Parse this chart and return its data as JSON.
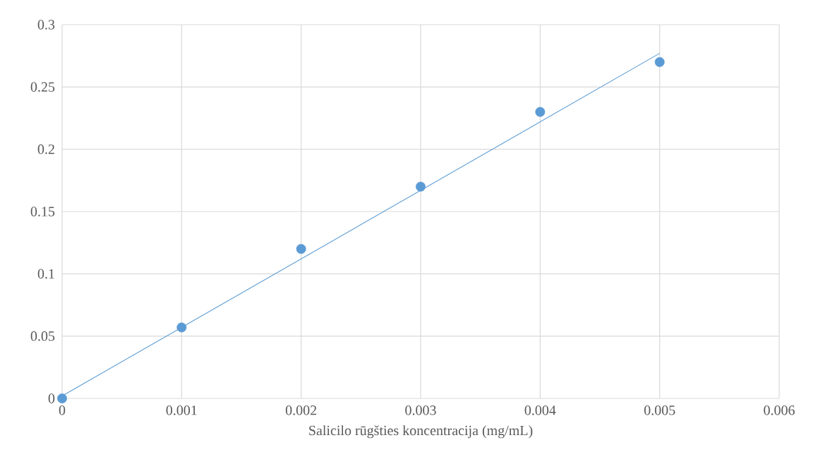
{
  "chart_data": {
    "type": "scatter",
    "xlabel": "Salicilo rūgšties koncentracija (mg/mL)",
    "series": [
      {
        "color": "#5b9bd5",
        "x": [
          0,
          0.001,
          0.002,
          0.003,
          0.004,
          0.005
        ],
        "values": [
          0,
          0.057,
          0.12,
          0.17,
          0.23,
          0.27
        ]
      },
      {
        "type": "line",
        "marker": "none",
        "color": "#5b9bd5",
        "x": [
          0,
          0.005
        ],
        "values": [
          0.002,
          0.277
        ]
      }
    ],
    "xlim": [
      0,
      0.006
    ],
    "xticks": [
      0,
      0.001,
      0.002,
      0.003,
      0.004,
      0.005,
      0.006
    ],
    "ylim": [
      0,
      0.3
    ],
    "yticks": [
      0,
      0.05,
      0.1,
      0.15,
      0.2,
      0.25,
      0.3
    ],
    "grid": true,
    "marker": "circle"
  }
}
